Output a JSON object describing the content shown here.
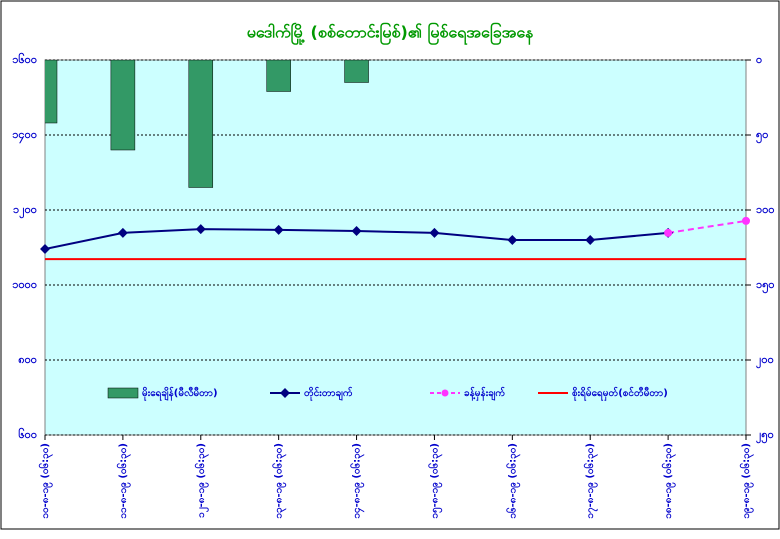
{
  "chart_data": {
    "type": "combo",
    "title": "မဒေါက်မြို့ (စစ်တောင်းမြစ်)၏ မြစ်ရေအခြေအနေ",
    "categories": [
      "၁၀-၈-၁၉ (၀၆:၃၀)",
      "၁၁-၈-၁၉ (၀၆:၃၀)",
      "၁၂-၈-၁၉ (၀၆:၃၀)",
      "၁၃-၈-၁၉ (၀၆:၃၀)",
      "၁၄-၈-၁၉ (၀၆:၃၀)",
      "၁၅-၈-၁၉ (၀၆:၃၀)",
      "၁၆-၈-၁၉ (၀၆:၃၀)",
      "၁၇-၈-၁၉ (၀၆:၃၀)",
      "၁၈-၈-၁၉ (၀၆:၃၀)",
      "၁၉-၈-၁၉ (၀၆:၃၀)"
    ],
    "series": [
      {
        "name": "မိုးရေချိန်(မီလီမီတာ)",
        "kind": "bar",
        "axis": "y2",
        "color": "#339966",
        "values": [
          42,
          60,
          85,
          21,
          15,
          0,
          0,
          0,
          0,
          null
        ]
      },
      {
        "name": "တိုင်းတာချက်",
        "kind": "line",
        "color": "#000080",
        "values": [
          1096,
          1139,
          1149,
          1147,
          1144,
          1139,
          1120,
          1120,
          1139,
          null
        ]
      },
      {
        "name": "ခန့်မှန်းချက်",
        "kind": "dashed",
        "color": "#ff33ff",
        "values": [
          null,
          null,
          null,
          null,
          null,
          null,
          null,
          null,
          1139,
          1171
        ]
      },
      {
        "name": "စိုးရိမ်ရေမှတ်(စင်တီမီတာ)",
        "kind": "plain",
        "color": "#ff0000",
        "values": [
          1069,
          1069,
          1069,
          1069,
          1069,
          1069,
          1069,
          1069,
          1069,
          1069
        ]
      }
    ],
    "ylim": [
      600,
      1600
    ],
    "yticks": [
      {
        "value": 600,
        "label": "၆၀၀"
      },
      {
        "value": 800,
        "label": "၈၀၀"
      },
      {
        "value": 1000,
        "label": "၁၀၀၀"
      },
      {
        "value": 1200,
        "label": "၁၂၀၀"
      },
      {
        "value": 1400,
        "label": "၁၄၀၀"
      },
      {
        "value": 1600,
        "label": "၁၆၀၀"
      }
    ],
    "y2lim": [
      250,
      0
    ],
    "y2ticks": [
      {
        "value": 0,
        "label": "၀"
      },
      {
        "value": 50,
        "label": "၅၀"
      },
      {
        "value": 100,
        "label": "၁၀၀"
      },
      {
        "value": 150,
        "label": "၁၅၀"
      },
      {
        "value": 200,
        "label": "၂၀၀"
      },
      {
        "value": 250,
        "label": "၂၅၀"
      }
    ],
    "grid": true,
    "background": "#ccffff"
  }
}
